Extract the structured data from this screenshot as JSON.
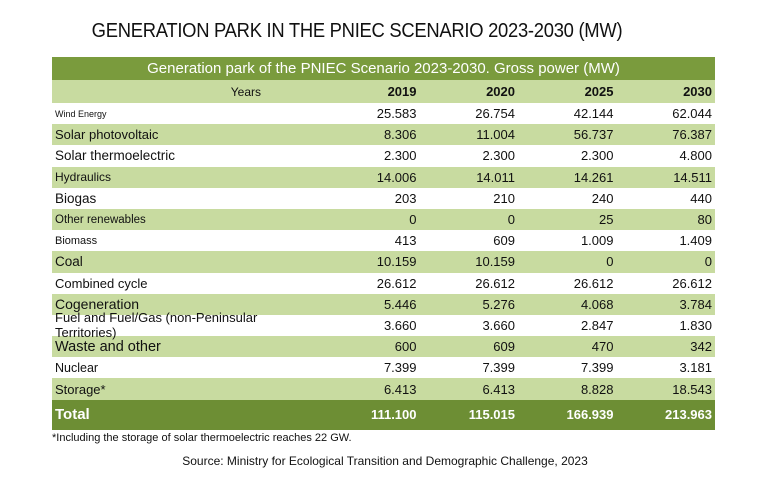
{
  "title": "GENERATION PARK IN THE PNIEC SCENARIO 2023-2030 (MW)",
  "table": {
    "caption": "Generation park of the PNIEC Scenario 2023-2030. Gross power (MW)",
    "years_label": "Years",
    "years": [
      "2019",
      "2020",
      "2025",
      "2030"
    ],
    "rows": [
      {
        "label": "Wind Energy",
        "values": [
          "25.583",
          "26.754",
          "42.144",
          "62.044"
        ]
      },
      {
        "label": "Solar photovoltaic",
        "values": [
          "8.306",
          "11.004",
          "56.737",
          "76.387"
        ]
      },
      {
        "label": "Solar thermoelectric",
        "values": [
          "2.300",
          "2.300",
          "2.300",
          "4.800"
        ]
      },
      {
        "label": "Hydraulics",
        "values": [
          "14.006",
          "14.011",
          "14.261",
          "14.511"
        ]
      },
      {
        "label": "Biogas",
        "values": [
          "203",
          "210",
          "240",
          "440"
        ]
      },
      {
        "label": "Other renewables",
        "values": [
          "0",
          "0",
          "25",
          "80"
        ]
      },
      {
        "label": "Biomass",
        "values": [
          "413",
          "609",
          "1.009",
          "1.409"
        ]
      },
      {
        "label": "Coal",
        "values": [
          "10.159",
          "10.159",
          "0",
          "0"
        ]
      },
      {
        "label": "Combined cycle",
        "values": [
          "26.612",
          "26.612",
          "26.612",
          "26.612"
        ]
      },
      {
        "label": "Cogeneration",
        "values": [
          "5.446",
          "5.276",
          "4.068",
          "3.784"
        ]
      },
      {
        "label": "Fuel and Fuel/Gas (non-Peninsular Territories)",
        "values": [
          "3.660",
          "3.660",
          "2.847",
          "1.830"
        ]
      },
      {
        "label": "Waste and other",
        "values": [
          "600",
          "609",
          "470",
          "342"
        ]
      },
      {
        "label": "Nuclear",
        "values": [
          "7.399",
          "7.399",
          "7.399",
          "3.181"
        ]
      },
      {
        "label": "Storage*",
        "values": [
          "6.413",
          "6.413",
          "8.828",
          "18.543"
        ]
      }
    ],
    "total": {
      "label": "Total",
      "values": [
        "111.100",
        "115.015",
        "166.939",
        "213.963"
      ]
    }
  },
  "footnote": "*Including the storage of solar thermoelectric reaches 22 GW.",
  "source": "Source: Ministry for Ecological Transition and Demographic Challenge, 2023",
  "colors": {
    "header": "#7a9b3d",
    "band": "#c8dba0",
    "total": "#6d8e34"
  }
}
